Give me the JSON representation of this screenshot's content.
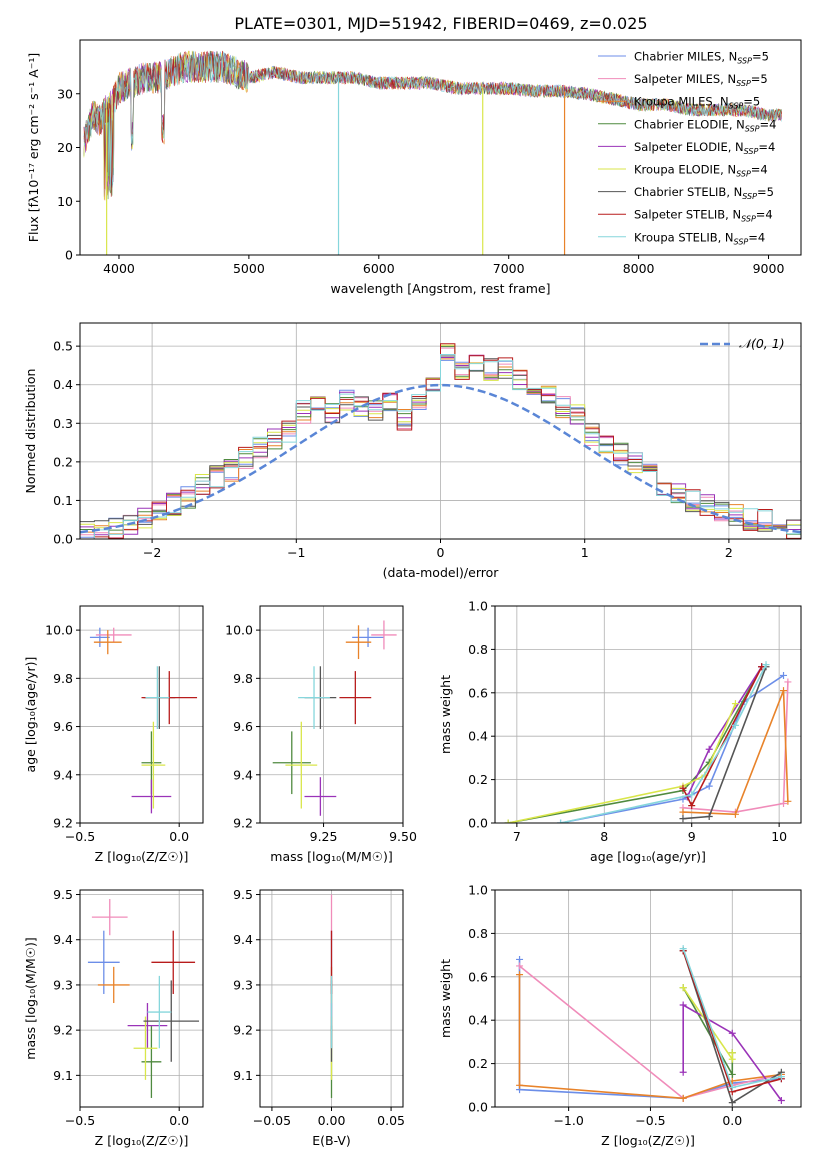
{
  "figure_title": "PLATE=0301, MJD=51942, FIBERID=0469, z=0.025",
  "series_colors": [
    "#6c8ee8",
    "#f08cba",
    "#e8832a",
    "#4f8a3f",
    "#9a33b8",
    "#d9e64a",
    "#555555",
    "#b81c1c",
    "#86d6dc"
  ],
  "chart_data": [
    {
      "type": "line",
      "panel": "spectrum",
      "xlabel": "wavelength [Angstrom, rest frame]",
      "ylabel": "Flux [fλ10⁻¹⁷ erg cm⁻² s⁻¹ A⁻¹]",
      "xlim": [
        3700,
        9250
      ],
      "ylim": [
        0,
        40
      ],
      "xticks": [
        "4000",
        "5000",
        "6000",
        "7000",
        "8000",
        "9000"
      ],
      "yticks": [
        "0",
        "10",
        "20",
        "30"
      ],
      "legend": [
        "Chabrier MILES, N_SSP=5",
        "Salpeter MILES, N_SSP=5",
        "Kroupa MILES, N_SSP=5",
        "Chabrier ELODIE, N_SSP=4",
        "Salpeter ELODIE, N_SSP=4",
        "Kroupa ELODIE, N_SSP=4",
        "Chabrier STELIB, N_SSP=5",
        "Salpeter STELIB, N_SSP=4",
        "Kroupa STELIB, N_SSP=4"
      ],
      "legend_colors": [
        "#6c8ee8",
        "#f08cba",
        "#e8832a",
        "#4f8a3f",
        "#9a33b8",
        "#d9e64a",
        "#555555",
        "#b81c1c",
        "#86d6dc"
      ],
      "legend_position": "upper-right",
      "envelope": {
        "x": [
          3730,
          3800,
          3850,
          3900,
          3950,
          4000,
          4100,
          4200,
          4300,
          4400,
          4500,
          4600,
          4700,
          4800,
          4900,
          5000,
          5200,
          5400,
          5600,
          5800,
          6000,
          6200,
          6400,
          6600,
          6800,
          7000,
          7200,
          7400,
          7600,
          7800,
          8000,
          8200,
          8400,
          8600,
          8800,
          9000,
          9100
        ],
        "y": [
          21,
          26,
          25,
          27,
          28,
          31,
          32,
          33,
          33,
          34,
          35,
          35,
          35,
          35,
          34,
          33,
          34,
          33,
          33,
          33,
          32,
          32,
          32,
          31,
          31,
          31,
          30.5,
          30.5,
          30,
          29,
          28,
          28,
          27,
          27,
          27,
          26,
          26
        ]
      },
      "drops": [
        {
          "x": 3905,
          "y": 0
        },
        {
          "x": 5690,
          "y": 0
        },
        {
          "x": 6800,
          "y": 0
        },
        {
          "x": 7430,
          "y": 0
        }
      ]
    },
    {
      "type": "bar",
      "panel": "residual-histogram",
      "xlabel": "(data-model)/error",
      "ylabel": "Normed distribution",
      "xlim": [
        -2.5,
        2.5
      ],
      "ylim": [
        0,
        0.56
      ],
      "xticks": [
        "−2",
        "−1",
        "0",
        "1",
        "2"
      ],
      "yticks": [
        "0.0",
        "0.1",
        "0.2",
        "0.3",
        "0.4",
        "0.5"
      ],
      "legend": [
        "𝒩(0, 1)"
      ],
      "bin_width": 0.1,
      "bin_start": -2.5,
      "values": [
        0.02,
        0.02,
        0.03,
        0.04,
        0.05,
        0.07,
        0.09,
        0.11,
        0.14,
        0.16,
        0.18,
        0.21,
        0.24,
        0.26,
        0.28,
        0.33,
        0.35,
        0.33,
        0.36,
        0.34,
        0.33,
        0.35,
        0.31,
        0.36,
        0.41,
        0.48,
        0.43,
        0.46,
        0.44,
        0.44,
        0.41,
        0.4,
        0.38,
        0.34,
        0.32,
        0.27,
        0.24,
        0.22,
        0.2,
        0.17,
        0.14,
        0.12,
        0.1,
        0.09,
        0.07,
        0.06,
        0.05,
        0.05,
        0.04,
        0.03
      ]
    },
    {
      "type": "scatter",
      "panel": "age-vs-Z",
      "xlabel": "Z [log₁₀(Z/Z☉)]",
      "ylabel": "age  [log₁₀(age/yr)]",
      "xlim": [
        -0.5,
        0.12
      ],
      "ylim": [
        9.2,
        10.1
      ],
      "xticks": [
        "−0.5",
        "0.0"
      ],
      "yticks": [
        "9.2",
        "9.4",
        "9.6",
        "9.8",
        "10.0"
      ],
      "points": [
        {
          "x": -0.4,
          "y": 9.97,
          "xerr": 0.05,
          "yerr": 0.04,
          "series": 0
        },
        {
          "x": -0.33,
          "y": 9.98,
          "xerr": 0.09,
          "yerr": 0.03,
          "series": 1
        },
        {
          "x": -0.36,
          "y": 9.95,
          "xerr": 0.07,
          "yerr": 0.05,
          "series": 2
        },
        {
          "x": -0.14,
          "y": 9.45,
          "xerr": 0.05,
          "yerr": 0.13,
          "series": 3
        },
        {
          "x": -0.14,
          "y": 9.31,
          "xerr": 0.1,
          "yerr": 0.07,
          "series": 4
        },
        {
          "x": -0.13,
          "y": 9.44,
          "xerr": 0.06,
          "yerr": 0.18,
          "series": 5
        },
        {
          "x": -0.1,
          "y": 9.72,
          "xerr": 0.08,
          "yerr": 0.13,
          "series": 6
        },
        {
          "x": -0.05,
          "y": 9.72,
          "xerr": 0.14,
          "yerr": 0.11,
          "series": 7
        },
        {
          "x": -0.11,
          "y": 9.72,
          "xerr": 0.06,
          "yerr": 0.13,
          "series": 8
        }
      ]
    },
    {
      "type": "scatter",
      "panel": "age-vs-mass",
      "xlabel": "mass [log₁₀(M/M☉)]",
      "ylabel": "",
      "xlim": [
        9.05,
        9.5
      ],
      "ylim": [
        9.2,
        10.1
      ],
      "xticks": [
        "9.25",
        "9.50"
      ],
      "yticks": [
        "9.2",
        "9.4",
        "9.6",
        "9.8",
        "10.0"
      ],
      "points": [
        {
          "x": 9.39,
          "y": 9.97,
          "xerr": 0.05,
          "yerr": 0.04,
          "series": 0
        },
        {
          "x": 9.44,
          "y": 9.98,
          "xerr": 0.04,
          "yerr": 0.06,
          "series": 1
        },
        {
          "x": 9.36,
          "y": 9.95,
          "xerr": 0.04,
          "yerr": 0.07,
          "series": 2
        },
        {
          "x": 9.15,
          "y": 9.45,
          "xerr": 0.06,
          "yerr": 0.13,
          "series": 3
        },
        {
          "x": 9.24,
          "y": 9.31,
          "xerr": 0.05,
          "yerr": 0.08,
          "series": 4
        },
        {
          "x": 9.18,
          "y": 9.44,
          "xerr": 0.05,
          "yerr": 0.18,
          "series": 5
        },
        {
          "x": 9.24,
          "y": 9.72,
          "xerr": 0.05,
          "yerr": 0.13,
          "series": 6
        },
        {
          "x": 9.35,
          "y": 9.72,
          "xerr": 0.05,
          "yerr": 0.11,
          "series": 7
        },
        {
          "x": 9.22,
          "y": 9.72,
          "xerr": 0.05,
          "yerr": 0.13,
          "series": 8
        }
      ]
    },
    {
      "type": "line",
      "panel": "weight-vs-age",
      "xlabel": "age  [log₁₀(age/yr)]",
      "ylabel": "mass weight",
      "xlim": [
        6.75,
        10.25
      ],
      "ylim": [
        0,
        1.0
      ],
      "xticks": [
        "7",
        "8",
        "9",
        "10"
      ],
      "yticks": [
        "0.0",
        "0.2",
        "0.4",
        "0.6",
        "0.8",
        "1.0"
      ],
      "series": [
        {
          "x": [
            7.5,
            8.9,
            9.2,
            9.6,
            10.05
          ],
          "y": [
            0.0,
            0.11,
            0.17,
            0.56,
            0.68
          ]
        },
        {
          "x": [
            8.9,
            9.5,
            10.05,
            10.1
          ],
          "y": [
            0.07,
            0.05,
            0.09,
            0.65
          ]
        },
        {
          "x": [
            8.9,
            9.5,
            10.05,
            10.1
          ],
          "y": [
            0.05,
            0.04,
            0.61,
            0.1
          ]
        },
        {
          "x": [
            6.9,
            8.9,
            9.2,
            9.8
          ],
          "y": [
            0.0,
            0.15,
            0.28,
            0.72
          ]
        },
        {
          "x": [
            8.95,
            9.2,
            9.8
          ],
          "y": [
            0.12,
            0.34,
            0.72
          ]
        },
        {
          "x": [
            6.9,
            8.9,
            9.15,
            9.5
          ],
          "y": [
            0.0,
            0.17,
            0.22,
            0.55
          ]
        },
        {
          "x": [
            8.9,
            9.2,
            9.85
          ],
          "y": [
            0.02,
            0.03,
            0.72
          ]
        },
        {
          "x": [
            8.9,
            9.0,
            9.8
          ],
          "y": [
            0.16,
            0.08,
            0.72
          ]
        },
        {
          "x": [
            7.5,
            9.0,
            9.5,
            9.85
          ],
          "y": [
            0.0,
            0.13,
            0.45,
            0.73
          ]
        }
      ]
    },
    {
      "type": "scatter",
      "panel": "mass-vs-Z",
      "xlabel": "Z [log₁₀(Z/Z☉)]",
      "ylabel": "mass [log₁₀(M/M☉)]",
      "xlim": [
        -0.5,
        0.12
      ],
      "ylim": [
        9.03,
        9.51
      ],
      "xticks": [
        "−0.5",
        "0.0"
      ],
      "yticks": [
        "9.1",
        "9.2",
        "9.3",
        "9.4",
        "9.5"
      ],
      "points": [
        {
          "x": -0.38,
          "y": 9.35,
          "xerr": 0.08,
          "yerr": 0.07,
          "series": 0
        },
        {
          "x": -0.35,
          "y": 9.45,
          "xerr": 0.09,
          "yerr": 0.04,
          "series": 1
        },
        {
          "x": -0.33,
          "y": 9.3,
          "xerr": 0.08,
          "yerr": 0.04,
          "series": 2
        },
        {
          "x": -0.14,
          "y": 9.13,
          "xerr": 0.05,
          "yerr": 0.08,
          "series": 3
        },
        {
          "x": -0.16,
          "y": 9.21,
          "xerr": 0.1,
          "yerr": 0.05,
          "series": 4
        },
        {
          "x": -0.17,
          "y": 9.16,
          "xerr": 0.06,
          "yerr": 0.07,
          "series": 5
        },
        {
          "x": -0.04,
          "y": 9.22,
          "xerr": 0.14,
          "yerr": 0.09,
          "series": 6
        },
        {
          "x": -0.03,
          "y": 9.35,
          "xerr": 0.11,
          "yerr": 0.07,
          "series": 7
        },
        {
          "x": -0.1,
          "y": 9.24,
          "xerr": 0.06,
          "yerr": 0.08,
          "series": 8
        }
      ]
    },
    {
      "type": "scatter",
      "panel": "mass-vs-ebv",
      "xlabel": "E(B-V)",
      "ylabel": "",
      "xlim": [
        -0.06,
        0.06
      ],
      "ylim": [
        9.03,
        9.51
      ],
      "xticks": [
        "−0.05",
        "0.00",
        "0.05"
      ],
      "yticks": [
        "9.1",
        "9.2",
        "9.3",
        "9.4",
        "9.5"
      ],
      "points": [
        {
          "x": 0.0,
          "y": 9.35,
          "yerr": 0.07,
          "series": 0
        },
        {
          "x": 0.0,
          "y": 9.45,
          "yerr": 0.05,
          "series": 1
        },
        {
          "x": 0.0,
          "y": 9.3,
          "yerr": 0.04,
          "series": 2
        },
        {
          "x": 0.0,
          "y": 9.13,
          "yerr": 0.08,
          "series": 3
        },
        {
          "x": 0.0,
          "y": 9.21,
          "yerr": 0.05,
          "series": 4
        },
        {
          "x": 0.0,
          "y": 9.16,
          "yerr": 0.07,
          "series": 5
        },
        {
          "x": 0.0,
          "y": 9.22,
          "yerr": 0.09,
          "series": 6
        },
        {
          "x": 0.0,
          "y": 9.35,
          "yerr": 0.07,
          "series": 7
        },
        {
          "x": 0.0,
          "y": 9.24,
          "yerr": 0.08,
          "series": 8
        }
      ]
    },
    {
      "type": "line",
      "panel": "weight-vs-Z",
      "xlabel": "Z [log₁₀(Z/Z☉)]",
      "ylabel": "mass weight",
      "xlim": [
        -1.45,
        0.42
      ],
      "ylim": [
        0,
        1.0
      ],
      "xticks": [
        "−1.0",
        "−0.5",
        "0.0"
      ],
      "yticks": [
        "0.0",
        "0.2",
        "0.4",
        "0.6",
        "0.8",
        "1.0"
      ],
      "series": [
        {
          "x": [
            -1.3,
            -1.3,
            -0.3,
            0.0,
            0.3
          ],
          "y": [
            0.68,
            0.08,
            0.04,
            0.11,
            0.13
          ]
        },
        {
          "x": [
            -1.3,
            -0.3,
            0.0,
            0.3
          ],
          "y": [
            0.65,
            0.04,
            0.1,
            0.15
          ]
        },
        {
          "x": [
            -1.3,
            -1.3,
            -0.3,
            0.0,
            0.3
          ],
          "y": [
            0.61,
            0.1,
            0.04,
            0.12,
            0.15
          ]
        },
        {
          "x": [
            -0.3,
            0.0,
            0.0
          ],
          "y": [
            0.55,
            0.15,
            0.25
          ]
        },
        {
          "x": [
            -0.3,
            -0.3,
            0.0,
            0.3
          ],
          "y": [
            0.16,
            0.47,
            0.34,
            0.03
          ]
        },
        {
          "x": [
            -0.3,
            0.0,
            0.0
          ],
          "y": [
            0.55,
            0.22,
            0.25
          ]
        },
        {
          "x": [
            -0.3,
            0.0,
            0.3
          ],
          "y": [
            0.72,
            0.02,
            0.16
          ]
        },
        {
          "x": [
            -0.3,
            0.0,
            0.3
          ],
          "y": [
            0.72,
            0.07,
            0.13
          ]
        },
        {
          "x": [
            -0.3,
            0.0,
            0.3
          ],
          "y": [
            0.73,
            0.09,
            0.14
          ]
        }
      ]
    }
  ]
}
